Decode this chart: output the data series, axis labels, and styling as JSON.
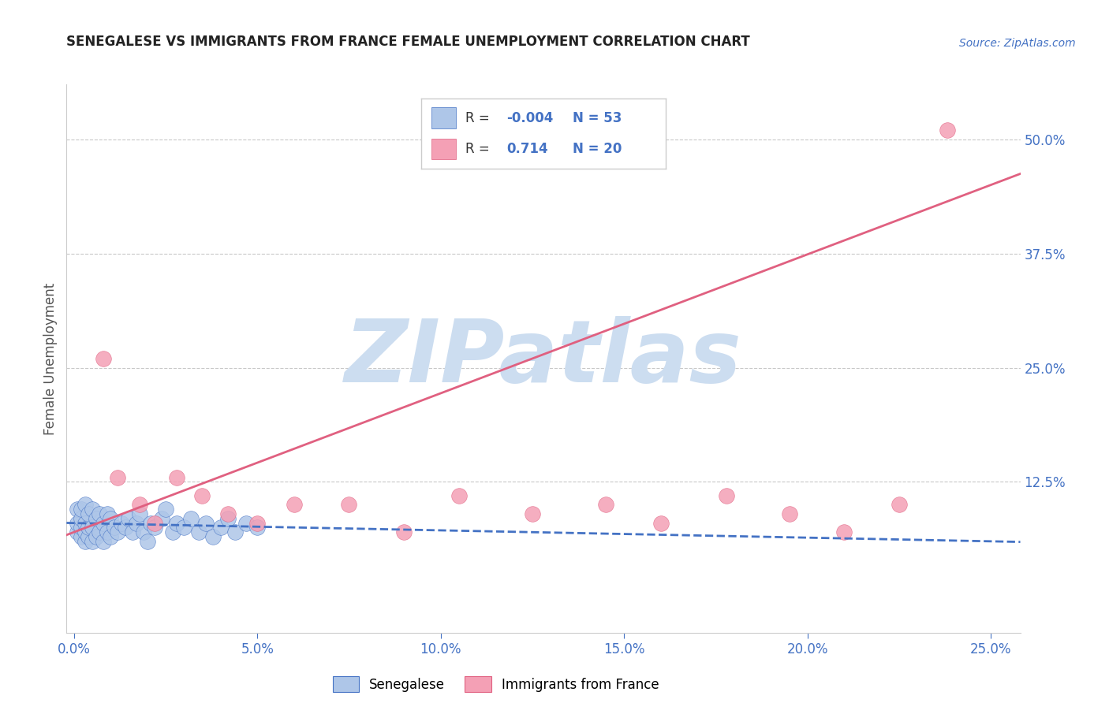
{
  "title": "SENEGALESE VS IMMIGRANTS FROM FRANCE FEMALE UNEMPLOYMENT CORRELATION CHART",
  "source": "Source: ZipAtlas.com",
  "ylabel_label": "Female Unemployment",
  "x_tick_labels": [
    "0.0%",
    "5.0%",
    "10.0%",
    "15.0%",
    "20.0%",
    "25.0%"
  ],
  "x_tick_positions": [
    0.0,
    0.05,
    0.1,
    0.15,
    0.2,
    0.25
  ],
  "y_tick_labels": [
    "12.5%",
    "25.0%",
    "37.5%",
    "50.0%"
  ],
  "y_tick_positions": [
    0.125,
    0.25,
    0.375,
    0.5
  ],
  "xlim": [
    -0.002,
    0.258
  ],
  "ylim": [
    -0.04,
    0.56
  ],
  "legend1_label": "Senegalese",
  "legend2_label": "Immigrants from France",
  "R1": "-0.004",
  "N1": "53",
  "R2": "0.714",
  "N2": "20",
  "color_blue": "#aec6e8",
  "color_pink": "#f4a0b5",
  "color_blue_line": "#4472c4",
  "color_pink_line": "#e06080",
  "color_text_blue": "#4472c4",
  "color_grid": "#c8c8c8",
  "watermark_color": "#ccddf0",
  "blue_scatter_x": [
    0.001,
    0.001,
    0.001,
    0.002,
    0.002,
    0.002,
    0.002,
    0.003,
    0.003,
    0.003,
    0.003,
    0.004,
    0.004,
    0.004,
    0.005,
    0.005,
    0.005,
    0.006,
    0.006,
    0.007,
    0.007,
    0.008,
    0.008,
    0.009,
    0.009,
    0.01,
    0.01,
    0.011,
    0.012,
    0.013,
    0.014,
    0.015,
    0.016,
    0.017,
    0.018,
    0.019,
    0.02,
    0.021,
    0.022,
    0.024,
    0.025,
    0.027,
    0.028,
    0.03,
    0.032,
    0.034,
    0.036,
    0.038,
    0.04,
    0.042,
    0.044,
    0.047,
    0.05
  ],
  "blue_scatter_y": [
    0.07,
    0.08,
    0.095,
    0.065,
    0.075,
    0.085,
    0.095,
    0.06,
    0.07,
    0.08,
    0.1,
    0.065,
    0.075,
    0.09,
    0.06,
    0.075,
    0.095,
    0.065,
    0.085,
    0.07,
    0.09,
    0.06,
    0.08,
    0.07,
    0.09,
    0.065,
    0.085,
    0.075,
    0.07,
    0.08,
    0.075,
    0.085,
    0.07,
    0.08,
    0.09,
    0.07,
    0.06,
    0.08,
    0.075,
    0.085,
    0.095,
    0.07,
    0.08,
    0.075,
    0.085,
    0.07,
    0.08,
    0.065,
    0.075,
    0.085,
    0.07,
    0.08,
    0.075
  ],
  "pink_scatter_x": [
    0.008,
    0.012,
    0.018,
    0.022,
    0.028,
    0.035,
    0.042,
    0.05,
    0.06,
    0.075,
    0.09,
    0.105,
    0.125,
    0.145,
    0.16,
    0.178,
    0.195,
    0.21,
    0.225,
    0.238
  ],
  "pink_scatter_y": [
    0.26,
    0.13,
    0.1,
    0.08,
    0.13,
    0.11,
    0.09,
    0.08,
    0.1,
    0.1,
    0.07,
    0.11,
    0.09,
    0.1,
    0.08,
    0.11,
    0.09,
    0.07,
    0.1,
    0.51
  ],
  "blue_trend_slope": -0.08,
  "blue_trend_intercept": 0.08,
  "pink_trend_slope": 1.52,
  "pink_trend_intercept": 0.07,
  "background_color": "#ffffff",
  "fig_width": 14.06,
  "fig_height": 8.92
}
